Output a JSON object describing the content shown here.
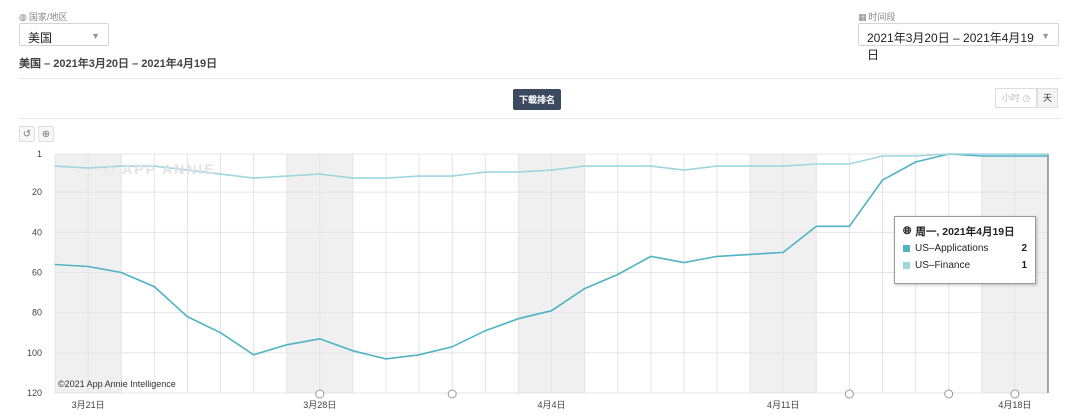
{
  "filters": {
    "country_label": "国家/地区",
    "country_value": "美国",
    "period_label": "时间段",
    "period_value": "2021年3月20日 – 2021年4月19日"
  },
  "subtitle": "美国 – 2021年3月20日 – 2021年4月19日",
  "download_button": "下载排名",
  "toggle": {
    "hour": "小时",
    "day": "天"
  },
  "watermark": "APP ANNIE",
  "copyright": "©2021 App Annie Intelligence",
  "tooltip": {
    "header": "周一, 2021年4月19日",
    "rows": [
      {
        "name": "US–Applications",
        "value": "2",
        "color": "#4fb3c4"
      },
      {
        "name": "US–Finance",
        "value": "1",
        "color": "#9fd6de"
      }
    ]
  },
  "chart_data": {
    "type": "line",
    "x": [
      "3月20日",
      "3月21日",
      "3月22日",
      "3月23日",
      "3月24日",
      "3月25日",
      "3月26日",
      "3月27日",
      "3月28日",
      "3月29日",
      "3月30日",
      "3月31日",
      "4月1日",
      "4月2日",
      "4月3日",
      "4月4日",
      "4月5日",
      "4月6日",
      "4月7日",
      "4月8日",
      "4月9日",
      "4月10日",
      "4月11日",
      "4月12日",
      "4月13日",
      "4月14日",
      "4月15日",
      "4月16日",
      "4月17日",
      "4月18日",
      "4月19日"
    ],
    "xticks": [
      "3月21日",
      "3月28日",
      "4月4日",
      "4月11日",
      "4月18日"
    ],
    "yticks": [
      1,
      20,
      40,
      60,
      80,
      100,
      120
    ],
    "ylim": [
      1,
      120
    ],
    "y_reversed": true,
    "series": [
      {
        "name": "US–Applications",
        "color": "#4fb3c4",
        "values": [
          56,
          57,
          60,
          67,
          82,
          90,
          101,
          96,
          93,
          99,
          103,
          101,
          97,
          89,
          83,
          79,
          68,
          61,
          52,
          55,
          52,
          51,
          50,
          37,
          37,
          14,
          5,
          1,
          2,
          2,
          2
        ]
      },
      {
        "name": "US–Finance",
        "color": "#9fd6de",
        "values": [
          7,
          8,
          7,
          7,
          9,
          11,
          13,
          12,
          11,
          13,
          13,
          12,
          12,
          10,
          10,
          9,
          7,
          7,
          7,
          9,
          7,
          7,
          7,
          6,
          6,
          2,
          2,
          1,
          1,
          1,
          1
        ]
      }
    ]
  }
}
